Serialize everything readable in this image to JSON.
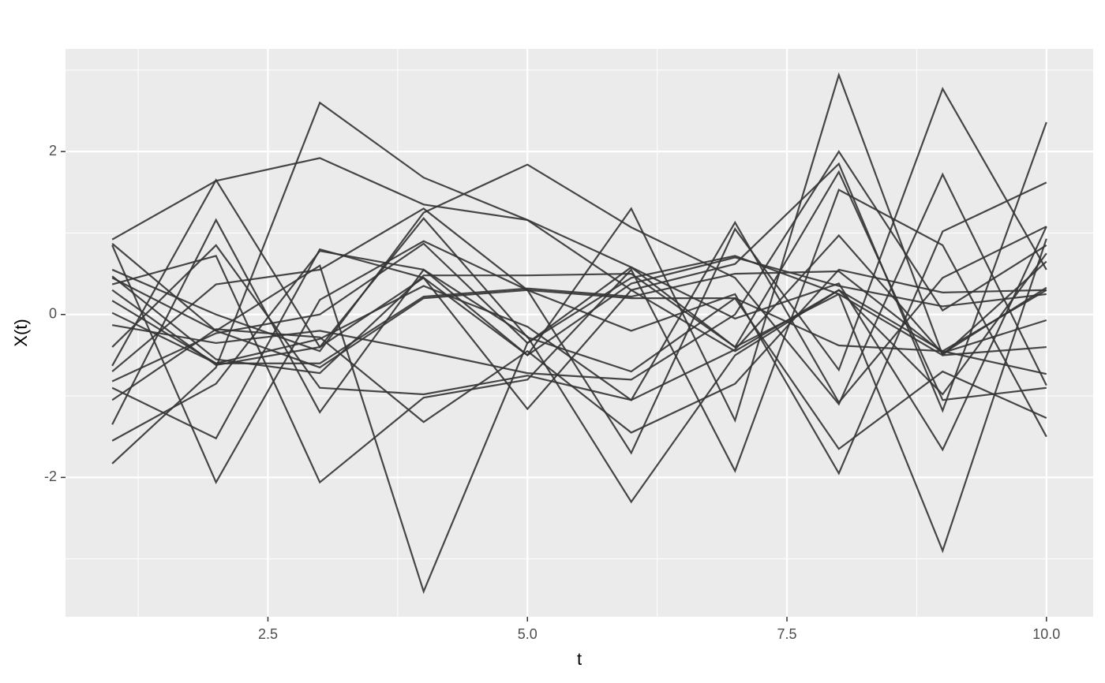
{
  "chart_data": {
    "type": "line",
    "x_label": "t",
    "y_label": "X(t)",
    "color": "#333333",
    "grid": true,
    "x": [
      1,
      2,
      3,
      4,
      5,
      6,
      7,
      8,
      9,
      10
    ],
    "xlim": [
      0.55,
      10.45
    ],
    "xticks": [
      2.5,
      {
        "value": 5,
        "label": "5.0"
      },
      7.5,
      {
        "value": 10,
        "label": "10.0"
      }
    ],
    "x_minor_ticks": [
      1.25,
      3.75,
      6.25,
      8.75
    ],
    "ylim": [
      -3.71,
      3.26
    ],
    "yticks": [
      -2,
      0,
      2
    ],
    "y_minor_ticks": [
      -3,
      -1,
      1,
      3
    ],
    "series": [
      {
        "values": [
          0.92,
          1.64,
          1.92,
          1.35,
          1.16,
          0.3,
          -0.45,
          0.3,
          -0.45,
          0.3
        ]
      },
      {
        "values": [
          -1.83,
          -0.65,
          2.6,
          1.68,
          1.16,
          0.58,
          -0.4,
          0.25,
          -0.5,
          0.65
        ]
      },
      {
        "values": [
          -1.35,
          1.16,
          -1.2,
          0.55,
          -0.5,
          1.3,
          -1.3,
          2.94,
          -0.5,
          -0.4
        ]
      },
      {
        "values": [
          0.45,
          -0.2,
          0.6,
          -3.4,
          -0.35,
          0.45,
          0.72,
          0.25,
          -2.9,
          0.93
        ]
      },
      {
        "values": [
          0.85,
          -2.06,
          0.18,
          0.9,
          0.3,
          -1.7,
          1.05,
          -0.68,
          2.77,
          0.55
        ]
      },
      {
        "values": [
          -0.9,
          -1.52,
          0.8,
          0.45,
          -1.16,
          0.3,
          0.62,
          1.85,
          -1.18,
          2.36
        ]
      },
      {
        "values": [
          0.37,
          0.72,
          -2.06,
          -1.02,
          -0.8,
          0.55,
          -1.92,
          1.53,
          0.85,
          -1.5
        ]
      },
      {
        "values": [
          -0.7,
          0.37,
          0.55,
          1.3,
          0.3,
          -0.2,
          0.25,
          -1.95,
          1.02,
          1.62
        ]
      },
      {
        "values": [
          0.55,
          0.0,
          -0.45,
          1.25,
          1.84,
          1.07,
          0.45,
          -1.1,
          1.72,
          -0.87
        ]
      },
      {
        "values": [
          0.02,
          -0.6,
          -0.6,
          0.22,
          0.32,
          0.22,
          0.5,
          0.53,
          -0.47,
          -0.07
        ]
      },
      {
        "values": [
          -0.13,
          -0.35,
          -0.2,
          -0.45,
          -0.72,
          -0.8,
          0.0,
          2.0,
          0.05,
          0.85
        ]
      },
      {
        "values": [
          0.47,
          -0.55,
          -0.72,
          0.48,
          0.48,
          0.5,
          -0.4,
          1.75,
          -1.05,
          -0.9
        ]
      },
      {
        "values": [
          -0.4,
          0.85,
          -0.9,
          -0.98,
          -0.75,
          -1.05,
          -0.43,
          0.97,
          -0.48,
          0.33
        ]
      },
      {
        "values": [
          0.17,
          -0.6,
          -0.3,
          0.35,
          -0.15,
          -1.05,
          1.13,
          -1.08,
          0.45,
          1.08
        ]
      },
      {
        "values": [
          -0.63,
          1.65,
          -0.4,
          1.18,
          -0.28,
          -0.7,
          0.2,
          -0.38,
          -0.45,
          -0.73
        ]
      },
      {
        "values": [
          -1.55,
          -0.85,
          0.78,
          0.55,
          -0.27,
          -2.3,
          -0.5,
          0.3,
          -0.98,
          0.75
        ]
      },
      {
        "values": [
          -1.05,
          -0.18,
          -0.28,
          -1.32,
          -0.45,
          -1.45,
          -0.85,
          0.55,
          0.27,
          0.3
        ]
      },
      {
        "values": [
          -0.82,
          -0.23,
          0.0,
          0.87,
          -0.35,
          0.58,
          -0.05,
          0.38,
          -1.66,
          1.08
        ]
      },
      {
        "values": [
          0.87,
          -0.2,
          -0.65,
          0.2,
          0.3,
          0.2,
          0.2,
          -1.65,
          -0.7,
          -1.27
        ]
      },
      {
        "values": [
          0.3,
          -0.62,
          -0.4,
          0.45,
          -0.5,
          0.38,
          0.7,
          0.35,
          0.1,
          0.25
        ]
      }
    ]
  }
}
